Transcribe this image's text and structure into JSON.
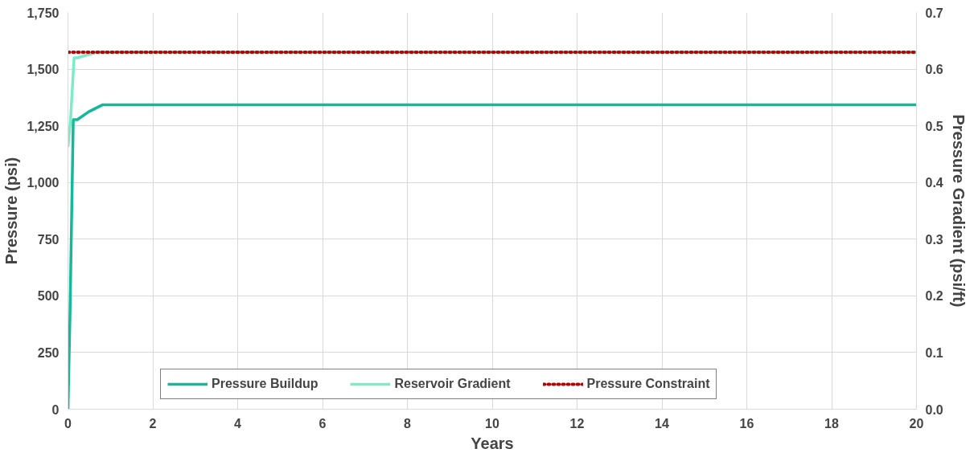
{
  "chart_data": {
    "type": "line",
    "xlabel": "Years",
    "ylabel": "Pressure (psi)",
    "y2label": "Pressure Gradient (psi/ft)",
    "xlim": [
      0,
      20
    ],
    "xticks": [
      0,
      2,
      4,
      6,
      8,
      10,
      12,
      14,
      16,
      18,
      20
    ],
    "ylim": [
      0,
      1750
    ],
    "yticks": [
      {
        "value": 0,
        "label": "0"
      },
      {
        "value": 250,
        "label": "250"
      },
      {
        "value": 500,
        "label": "500"
      },
      {
        "value": 750,
        "label": "750"
      },
      {
        "value": 1000,
        "label": "1,000"
      },
      {
        "value": 1250,
        "label": "1,250"
      },
      {
        "value": 1500,
        "label": "1,500"
      },
      {
        "value": 1750,
        "label": "1,750"
      }
    ],
    "y2lim": [
      0,
      0.7
    ],
    "y2ticks": [
      {
        "value": 0,
        "label": "0.0"
      },
      {
        "value": 0.1,
        "label": "0.1"
      },
      {
        "value": 0.2,
        "label": "0.2"
      },
      {
        "value": 0.3,
        "label": "0.3"
      },
      {
        "value": 0.4,
        "label": "0.4"
      },
      {
        "value": 0.5,
        "label": "0.5"
      },
      {
        "value": 0.6,
        "label": "0.6"
      },
      {
        "value": 0.7,
        "label": "0.7"
      }
    ],
    "grid": true,
    "legend": "bottom",
    "marker": "none",
    "series": [
      {
        "name": "Pressure Buildup",
        "color": "#14b89a",
        "line_style": "solid",
        "x": [
          0,
          0.045,
          0.125,
          0.22,
          0.49,
          0.82,
          20
        ],
        "values": [
          0,
          389,
          1277,
          1277,
          1312,
          1343,
          1343
        ]
      },
      {
        "name": "Reservoir Gradient",
        "color": "#7debc8",
        "line_style": "solid",
        "axis": "y2",
        "x": [
          0,
          0.06,
          0.145,
          0.22,
          0.69,
          20
        ],
        "values": [
          0.463,
          0.51,
          0.62,
          0.62,
          0.63,
          0.63
        ]
      },
      {
        "name": "Pressure Constraint",
        "color": "#c00000",
        "line_style": "dotted",
        "axis": "y2",
        "x": [
          0,
          20
        ],
        "values": [
          0.63,
          0.63
        ]
      }
    ]
  }
}
